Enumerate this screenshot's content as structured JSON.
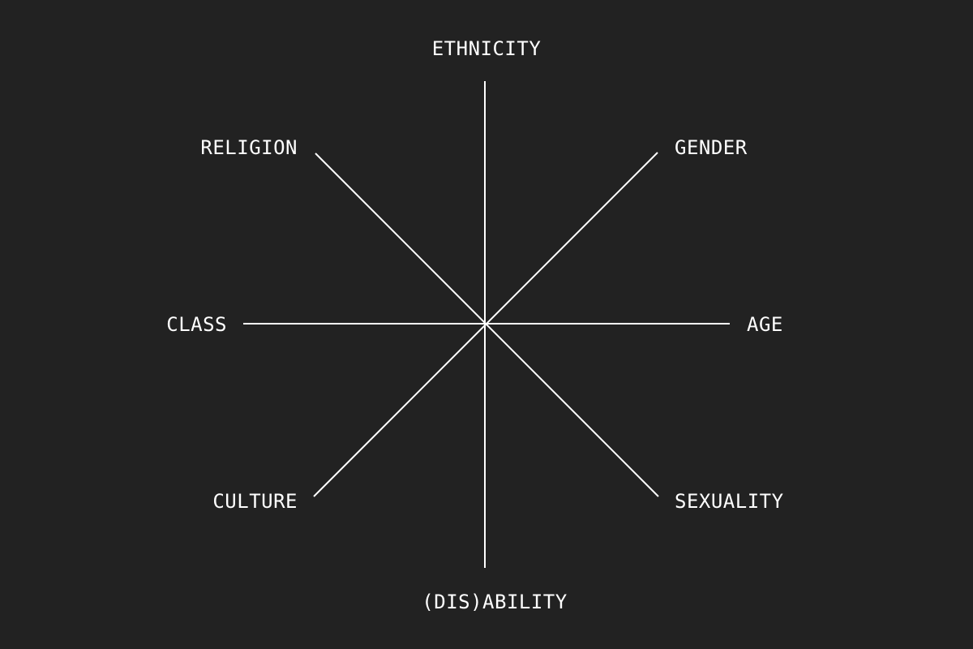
{
  "diagram": {
    "line_color": "#ffffff",
    "background_color": "#222222",
    "labels": {
      "ethnicity": "ETHNICITY",
      "gender": "GENDER",
      "age": "AGE",
      "sexuality": "SEXUALITY",
      "disability": "(DIS)ABILITY",
      "culture": "CULTURE",
      "class": "CLASS",
      "religion": "RELIGION"
    }
  }
}
